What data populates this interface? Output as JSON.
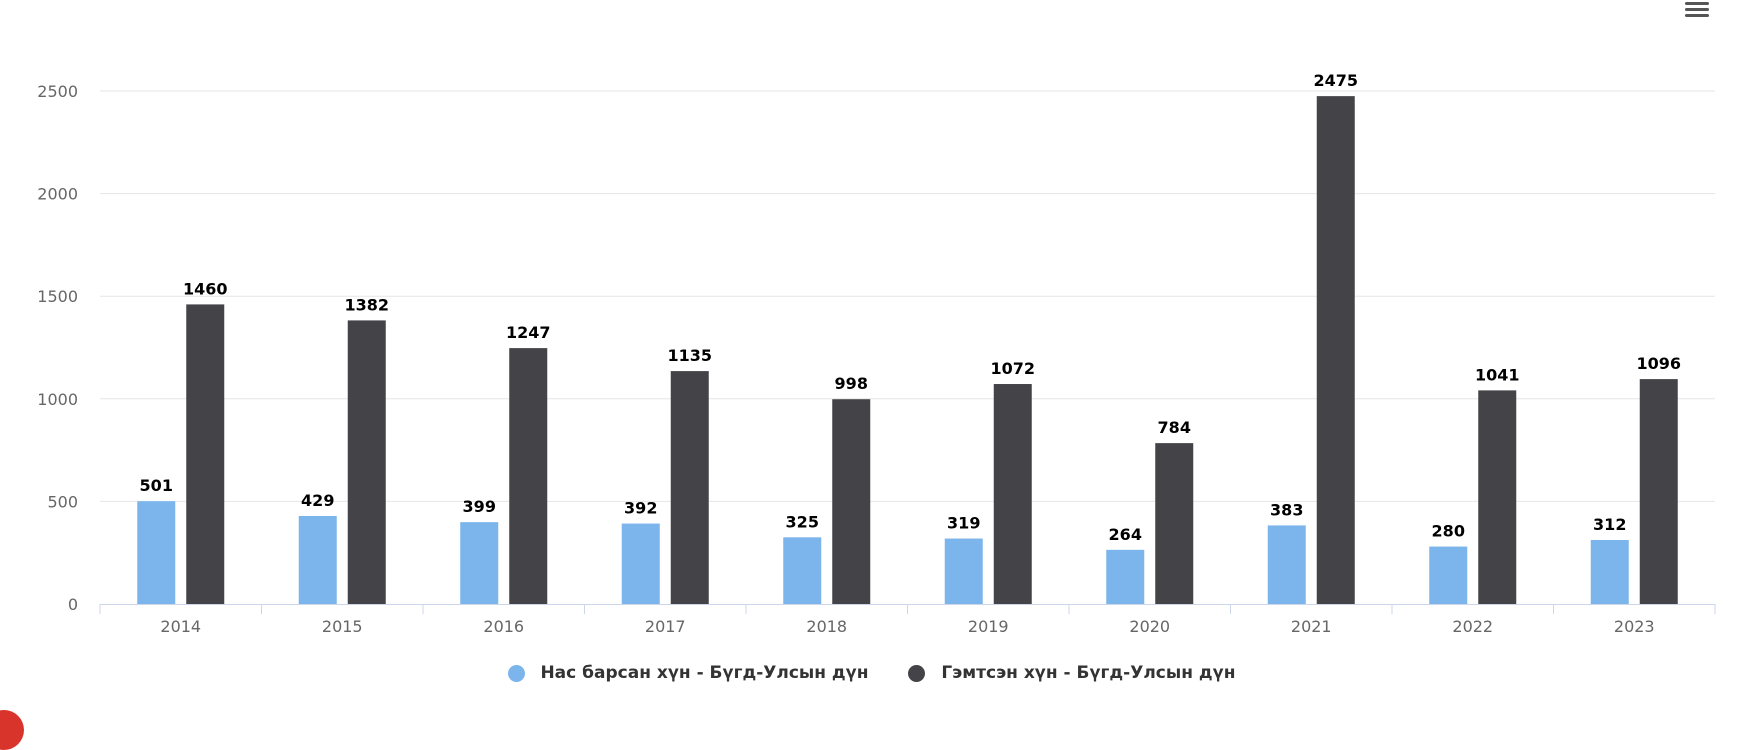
{
  "colors": {
    "series_1": "#7cb5ec",
    "series_2": "#434348",
    "grid": "#e6e6e6",
    "axis": "#ccd6eb",
    "menu": "#555555"
  },
  "icons": {
    "menu": "hamburger-menu-icon"
  },
  "chart_data": {
    "type": "bar",
    "categories": [
      "2014",
      "2015",
      "2016",
      "2017",
      "2018",
      "2019",
      "2020",
      "2021",
      "2022",
      "2023"
    ],
    "series": [
      {
        "name": "Нас барсан хүн - Бүгд-Улсын дүн",
        "values": [
          501,
          429,
          399,
          392,
          325,
          319,
          264,
          383,
          280,
          312
        ]
      },
      {
        "name": "Гэмтсэн хүн - Бүгд-Улсын дүн",
        "values": [
          1460,
          1382,
          1247,
          1135,
          998,
          1072,
          784,
          2475,
          1041,
          1096
        ]
      }
    ],
    "yticks": [
      0,
      500,
      1000,
      1500,
      2000,
      2500
    ],
    "ylim": [
      0,
      2500
    ],
    "grid": true,
    "data_labels": true,
    "legend_position": "bottom-center"
  }
}
